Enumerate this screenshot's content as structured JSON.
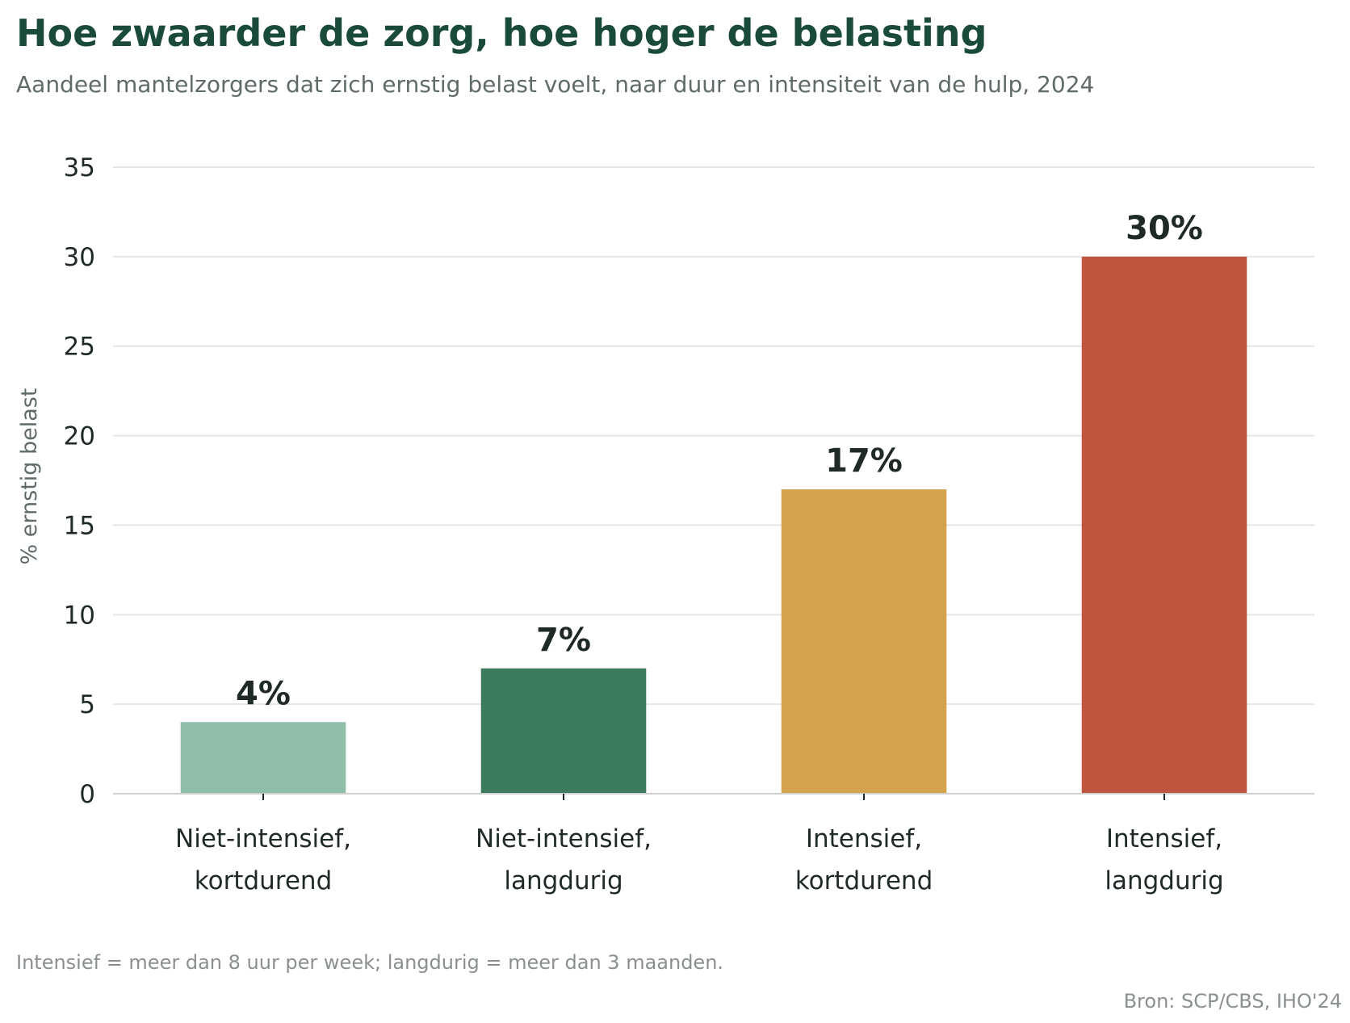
{
  "chart_data": {
    "type": "bar",
    "title": "Hoe zwaarder de zorg, hoe hoger de belasting",
    "subtitle": "Aandeel mantelzorgers dat zich ernstig belast voelt, naar duur en intensiteit van de hulp, 2024",
    "ylabel": "% ernstig belast",
    "xlabel": "",
    "ylim": [
      0,
      35
    ],
    "yticks": [
      0,
      5,
      10,
      15,
      20,
      25,
      30,
      35
    ],
    "grid": true,
    "categories": [
      [
        "Niet-intensief,",
        "kortdurend"
      ],
      [
        "Niet-intensief,",
        "langdurig"
      ],
      [
        "Intensief,",
        "kortdurend"
      ],
      [
        "Intensief,",
        "langdurig"
      ]
    ],
    "values": [
      4,
      7,
      17,
      30
    ],
    "data_labels": [
      "4%",
      "7%",
      "17%",
      "30%"
    ],
    "colors": [
      "#90bfa9",
      "#3d7b5f",
      "#d4a24c",
      "#c0553f"
    ]
  },
  "footnote": "Intensief = meer dan 8 uur per week; langdurig = meer dan 3 maanden.",
  "source": "Bron: SCP/CBS, IHO'24"
}
